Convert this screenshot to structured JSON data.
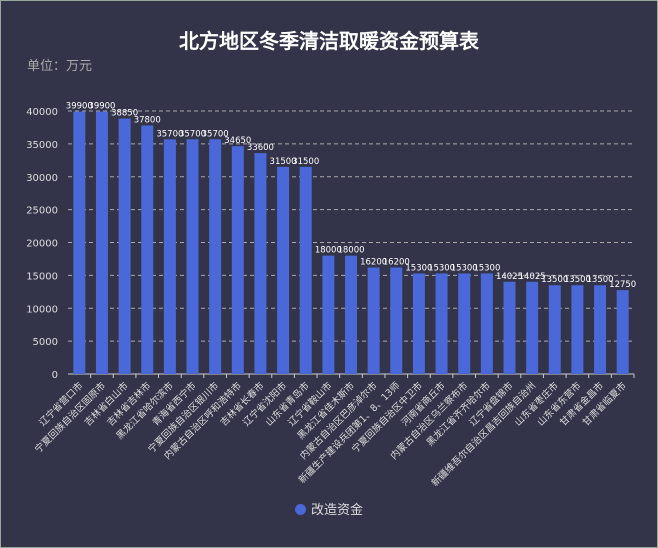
{
  "chart_data": {
    "type": "bar",
    "title": "北方地区冬季清洁取暖资金预算表",
    "subtitle": "单位：万元",
    "categories": [
      "辽宁省营口市",
      "宁夏回族自治区固原市",
      "吉林省白山市",
      "吉林省吉林市",
      "黑龙江省哈尔滨市",
      "青海省西宁市",
      "宁夏回族自治区银川市",
      "内蒙古自治区呼和浩特市",
      "吉林省长春市",
      "辽宁省沈阳市",
      "山东省青岛市",
      "辽宁省鞍山市",
      "黑龙江省佳木斯市",
      "内蒙古自治区巴彦淖尔市",
      "新疆生产建设兵团第1、8、13师",
      "宁夏回族自治区中卫市",
      "河南省商丘市",
      "内蒙古自治区乌兰察布市",
      "黑龙江省齐齐哈尔市",
      "辽宁省盘锦市",
      "新疆维吾尔自治区昌吉回族自治州",
      "山东省枣庄市",
      "山东省东营市",
      "甘肃省金昌市",
      "甘肃省临夏市"
    ],
    "series": [
      {
        "name": "改造资金",
        "color": "#4a68d8",
        "values": [
          39900,
          39900,
          38850,
          37800,
          35700,
          35700,
          35700,
          34650,
          33600,
          31500,
          31500,
          18000,
          18000,
          16200,
          16200,
          15300,
          15300,
          15300,
          15300,
          14025,
          14025,
          13500,
          13500,
          13500,
          12750
        ]
      }
    ],
    "yticks": [
      0,
      5000,
      10000,
      15000,
      20000,
      25000,
      30000,
      35000,
      40000
    ],
    "ylim": [
      0,
      40000
    ],
    "grid": "horizontal dashed",
    "legend": "bottom-center"
  }
}
